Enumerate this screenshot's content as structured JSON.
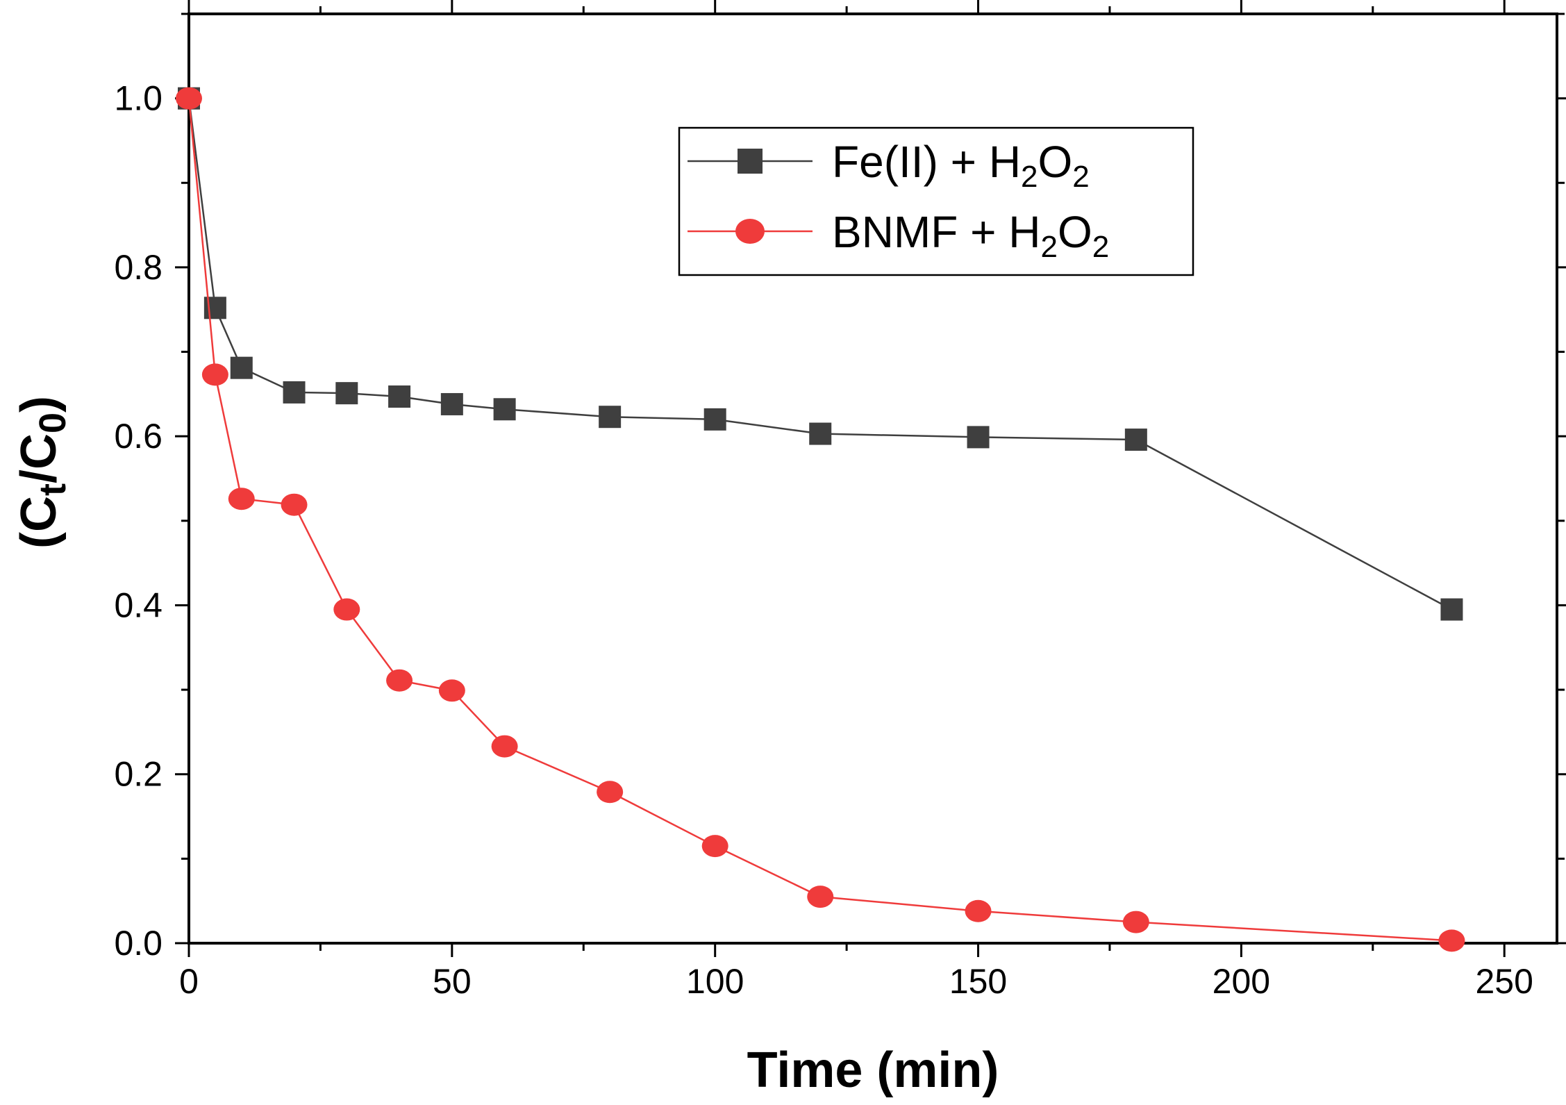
{
  "chart_data": {
    "type": "line",
    "title": "",
    "xlabel": "Time (min)",
    "ylabel": {
      "prefix": "(C",
      "sub1": "t",
      "mid": "/C",
      "sub2": "0",
      "suffix": ")"
    },
    "xlim": [
      0,
      260
    ],
    "ylim": [
      0,
      1.1
    ],
    "xticks": [
      0,
      50,
      100,
      150,
      200,
      250
    ],
    "xtick_labels": [
      "0",
      "50",
      "100",
      "150",
      "200",
      "250"
    ],
    "yticks": [
      0.0,
      0.2,
      0.4,
      0.6,
      0.8,
      1.0
    ],
    "ytick_labels": [
      "0.0",
      "0.2",
      "0.4",
      "0.6",
      "0.8",
      "1.0"
    ],
    "legend_position": "top-right",
    "series": [
      {
        "name": "Fe(II) + H2O2",
        "label_main": "Fe(II) + H",
        "label_sub1": "2",
        "label_mid": "O",
        "label_sub2": "2",
        "marker": "square",
        "color": "#3f3f3f",
        "x": [
          0,
          5,
          10,
          20,
          30,
          40,
          50,
          60,
          80,
          100,
          120,
          150,
          180,
          240
        ],
        "y": [
          1.0,
          0.752,
          0.681,
          0.652,
          0.651,
          0.647,
          0.638,
          0.632,
          0.623,
          0.62,
          0.603,
          0.599,
          0.596,
          0.395
        ]
      },
      {
        "name": "BNMF + H2O2",
        "label_main": "BNMF + H",
        "label_sub1": "2",
        "label_mid": "O",
        "label_sub2": "2",
        "marker": "circle",
        "color": "#ef3b3b",
        "x": [
          0,
          5,
          10,
          20,
          30,
          40,
          50,
          60,
          80,
          100,
          120,
          150,
          180,
          240
        ],
        "y": [
          1.0,
          0.673,
          0.526,
          0.519,
          0.395,
          0.311,
          0.299,
          0.233,
          0.179,
          0.115,
          0.055,
          0.038,
          0.025,
          0.003
        ]
      }
    ]
  }
}
